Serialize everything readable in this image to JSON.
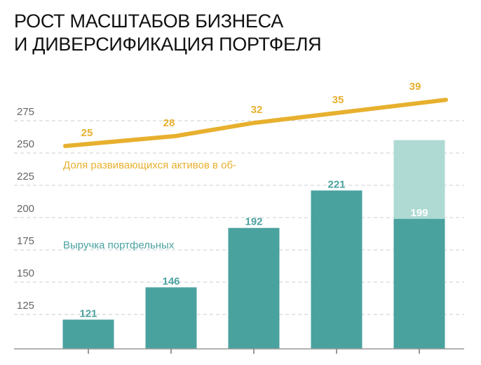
{
  "title": [
    "РОСТ МАСШТАБОВ БИЗНЕСА",
    "И ДИВЕРСИФИКАЦИЯ ПОРТФЕЛЯ"
  ],
  "chart_data": {
    "type": "bar",
    "title": "РОСТ МАСШТАБОВ БИЗНЕСА И ДИВЕРСИФИКАЦИЯ ПОРТФЕЛЯ",
    "yticks": [
      125,
      150,
      175,
      200,
      225,
      250,
      275
    ],
    "ylim": [
      98,
      290
    ],
    "grid": true,
    "categories": [
      "",
      "",
      "",
      "",
      ""
    ],
    "series": [
      {
        "name": "Выручка портфельных",
        "type": "bar",
        "color": "#4aa29f",
        "values": [
          121,
          146,
          192,
          221,
          199
        ],
        "labels": [
          "121",
          "146",
          "192",
          "221",
          "199"
        ]
      },
      {
        "name": "stacked-extra",
        "type": "bar",
        "color": "#afdad4",
        "values": [
          null,
          null,
          null,
          null,
          260
        ]
      },
      {
        "name": "Доля развивающихся активов в об-",
        "type": "line",
        "color": "#e7b02e",
        "values": [
          25,
          28,
          32,
          35,
          39
        ],
        "labels": [
          "25",
          "28",
          "32",
          "35",
          "39"
        ]
      }
    ]
  }
}
